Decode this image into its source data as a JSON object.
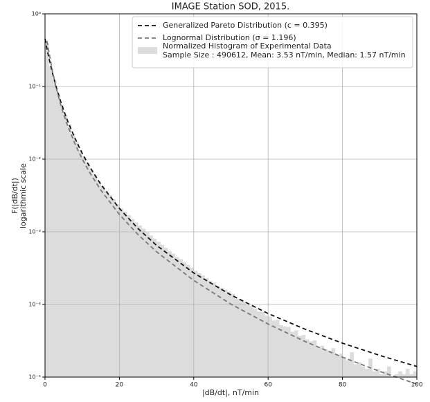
{
  "chart_data": {
    "type": "histogram",
    "title": "IMAGE Station SOD, 2015.",
    "xlabel": "|dB/dt|, nT/min",
    "ylabel": [
      "F(|dB/dt|)",
      "logarithmic scale"
    ],
    "xlim": [
      0,
      100
    ],
    "ylim": [
      1e-05,
      1
    ],
    "yscale": "log",
    "grid": true,
    "legend": "upper right",
    "xticks": [
      0,
      20,
      40,
      60,
      80,
      100
    ],
    "yticks": [
      {
        "value": 1,
        "label": "10⁰"
      },
      {
        "value": 0.1,
        "label": "10⁻¹"
      },
      {
        "value": 0.01,
        "label": "10⁻²"
      },
      {
        "value": 0.001,
        "label": "10⁻³"
      },
      {
        "value": 0.0001,
        "label": "10⁻⁴"
      },
      {
        "value": 1e-05,
        "label": "10⁻⁵"
      }
    ],
    "histogram": {
      "name": [
        "Normalized Histogram of Experimental Data",
        "Sample Size : 490612, Mean: 3.53  nT/min, Median: 1.57 nT/min"
      ],
      "color": "#dcdcdc",
      "bins": [
        0,
        1,
        2,
        3,
        4,
        5,
        6,
        7,
        8,
        9,
        10,
        11,
        12,
        13,
        14,
        15,
        16,
        17,
        18,
        19,
        20,
        21,
        22,
        23,
        24,
        25,
        26,
        27,
        28,
        29,
        30,
        31,
        32,
        33,
        34,
        35,
        36,
        37,
        38,
        39,
        40,
        41,
        42,
        43,
        44,
        45,
        46,
        47,
        48,
        49,
        50,
        51,
        52,
        53,
        54,
        55,
        56,
        57,
        58,
        59,
        60,
        61,
        62,
        63,
        64,
        65,
        66,
        67,
        68,
        69,
        70,
        71,
        72,
        73,
        74,
        75,
        76,
        77,
        78,
        79,
        80,
        81,
        82,
        83,
        84,
        85,
        86,
        87,
        88,
        89,
        90,
        91,
        92,
        93,
        94,
        95,
        96,
        97,
        98,
        99,
        100
      ],
      "counts": [
        0.4,
        0.19,
        0.122,
        0.081,
        0.056,
        0.04,
        0.03,
        0.0225,
        0.0172,
        0.0134,
        0.0108,
        0.0088,
        0.0072,
        0.006,
        0.005,
        0.0043,
        0.0037,
        0.0032,
        0.0028,
        0.0024,
        0.0021,
        0.0019,
        0.0017,
        0.0015,
        0.00135,
        0.00122,
        0.0011,
        0.00098,
        0.00089,
        0.0008,
        0.00073,
        0.00066,
        0.0006,
        0.00054,
        0.0005,
        0.00045,
        0.00042,
        0.00038,
        0.00035,
        0.00032,
        0.00029,
        0.00027,
        0.00025,
        0.00023,
        0.00021,
        0.0002,
        0.00018,
        0.00017,
        0.00016,
        0.00015,
        0.00014,
        0.00012,
        0.000118,
        0.00011,
        9.8e-05,
        9.5e-05,
        8.8e-05,
        8e-05,
        7.9e-05,
        7e-05,
        6.8e-05,
        6e-05,
        6.2e-05,
        5.2e-05,
        5e-05,
        4.9e-05,
        4.2e-05,
        4.4e-05,
        3.7e-05,
        3.8e-05,
        3.3e-05,
        3.1e-05,
        3.2e-05,
        2.6e-05,
        2.7e-05,
        2.4e-05,
        2.3e-05,
        2.5e-05,
        2e-05,
        2.1e-05,
        1.9e-05,
        1.7e-05,
        2.2e-05,
        1.5e-05,
        1.6e-05,
        1.4e-05,
        1.3e-05,
        1.8e-05,
        1.2e-05,
        1.3e-05,
        1.1e-05,
        1.2e-05,
        1.4e-05,
        1e-05,
        1.1e-05,
        1.2e-05,
        1.1e-05,
        1.3e-05,
        1.1e-05,
        1.2e-05
      ]
    },
    "series": [
      {
        "name": "Generalized Pareto Distribution (c = 0.395)",
        "color": "#111111",
        "dash": "6,4",
        "x": [
          0,
          0.5,
          1,
          2,
          3,
          4,
          5,
          6,
          8,
          10,
          12,
          15,
          20,
          25,
          30,
          40,
          50,
          60,
          70,
          80,
          90,
          100
        ],
        "values": [
          0.4545,
          0.3354,
          0.2536,
          0.1538,
          0.0992,
          0.0672,
          0.0473,
          0.0344,
          0.0196,
          0.01204,
          0.00785,
          0.0045,
          0.0021,
          0.00111,
          0.00065,
          0.000271,
          0.000135,
          7.5e-05,
          4.55e-05,
          2.93e-05,
          1.99e-05,
          1.4e-05
        ]
      },
      {
        "name": "Lognormal Distribution (σ = 1.196)",
        "color": "#777777",
        "dash": "6,4",
        "x": [
          0.5,
          1,
          2,
          3,
          4,
          5,
          6,
          8,
          10,
          12,
          15,
          20,
          25,
          30,
          40,
          50,
          60,
          70,
          80,
          90,
          100
        ],
        "values": [
          0.422,
          0.3107,
          0.1634,
          0.096,
          0.0614,
          0.0417,
          0.0297,
          0.01651,
          0.01007,
          0.00655,
          0.00375,
          0.00173,
          0.000917,
          0.000531,
          0.000214,
          0.000101,
          5.38e-05,
          3.08e-05,
          1.88e-05,
          1.2e-05,
          8e-06
        ]
      }
    ]
  }
}
